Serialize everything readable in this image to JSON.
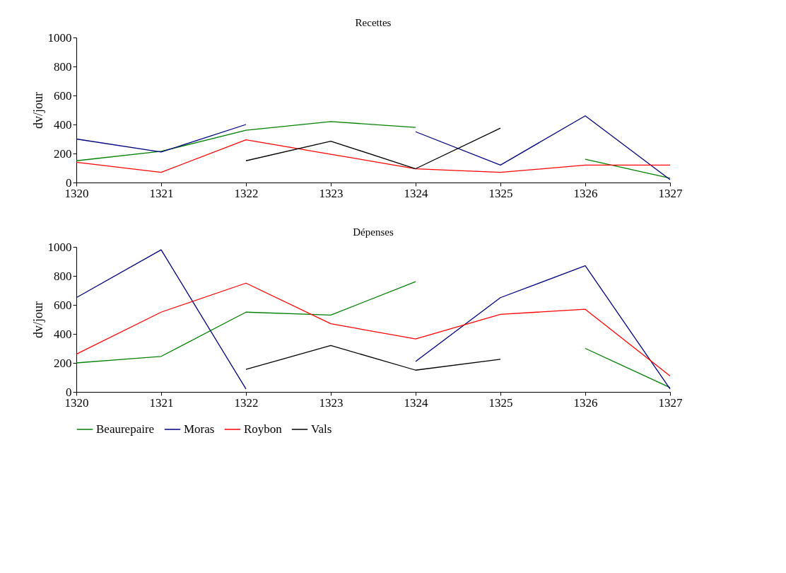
{
  "chart_data": [
    {
      "type": "line",
      "title": "Recettes",
      "ylabel": "dv/jour",
      "x": [
        1320,
        1321,
        1322,
        1323,
        1324,
        1325,
        1326,
        1327
      ],
      "xlim": [
        1320,
        1327
      ],
      "xticks": [
        1320,
        1321,
        1322,
        1323,
        1324,
        1325,
        1326,
        1327
      ],
      "ylim": [
        0,
        1000
      ],
      "yticks": [
        0,
        200,
        400,
        600,
        800,
        1000
      ],
      "grid": false,
      "legend": false,
      "line_style": "solid",
      "marker": "none",
      "series": [
        {
          "color": "#008000",
          "values": [
            150,
            215,
            360,
            420,
            380,
            null,
            160,
            30
          ]
        },
        {
          "color": "#000080",
          "values": [
            300,
            210,
            400,
            null,
            350,
            120,
            460,
            20
          ]
        },
        {
          "color": "#ff0000",
          "values": [
            140,
            70,
            295,
            195,
            95,
            70,
            120,
            120
          ]
        },
        {
          "color": "#000000",
          "values": [
            null,
            null,
            150,
            285,
            95,
            375,
            null,
            null
          ]
        }
      ]
    },
    {
      "type": "line",
      "title": "Dépenses",
      "ylabel": "dv/jour",
      "x": [
        1320,
        1321,
        1322,
        1323,
        1324,
        1325,
        1326,
        1327
      ],
      "xlim": [
        1320,
        1327
      ],
      "xticks": [
        1320,
        1321,
        1322,
        1323,
        1324,
        1325,
        1326,
        1327
      ],
      "ylim": [
        0,
        1000
      ],
      "yticks": [
        0,
        200,
        400,
        600,
        800,
        1000
      ],
      "grid": false,
      "legend": "bottom",
      "line_style": "solid",
      "marker": "none",
      "series": [
        {
          "name": "Beaurepaire",
          "color": "#008000",
          "values": [
            200,
            245,
            550,
            530,
            760,
            null,
            300,
            30
          ]
        },
        {
          "name": "Moras",
          "color": "#000080",
          "values": [
            650,
            980,
            20,
            null,
            210,
            650,
            870,
            20
          ]
        },
        {
          "name": "Roybon",
          "color": "#ff0000",
          "values": [
            260,
            550,
            750,
            470,
            365,
            535,
            570,
            110
          ]
        },
        {
          "name": "Vals",
          "color": "#000000",
          "values": [
            null,
            null,
            155,
            320,
            150,
            225,
            null,
            null
          ]
        }
      ]
    }
  ]
}
